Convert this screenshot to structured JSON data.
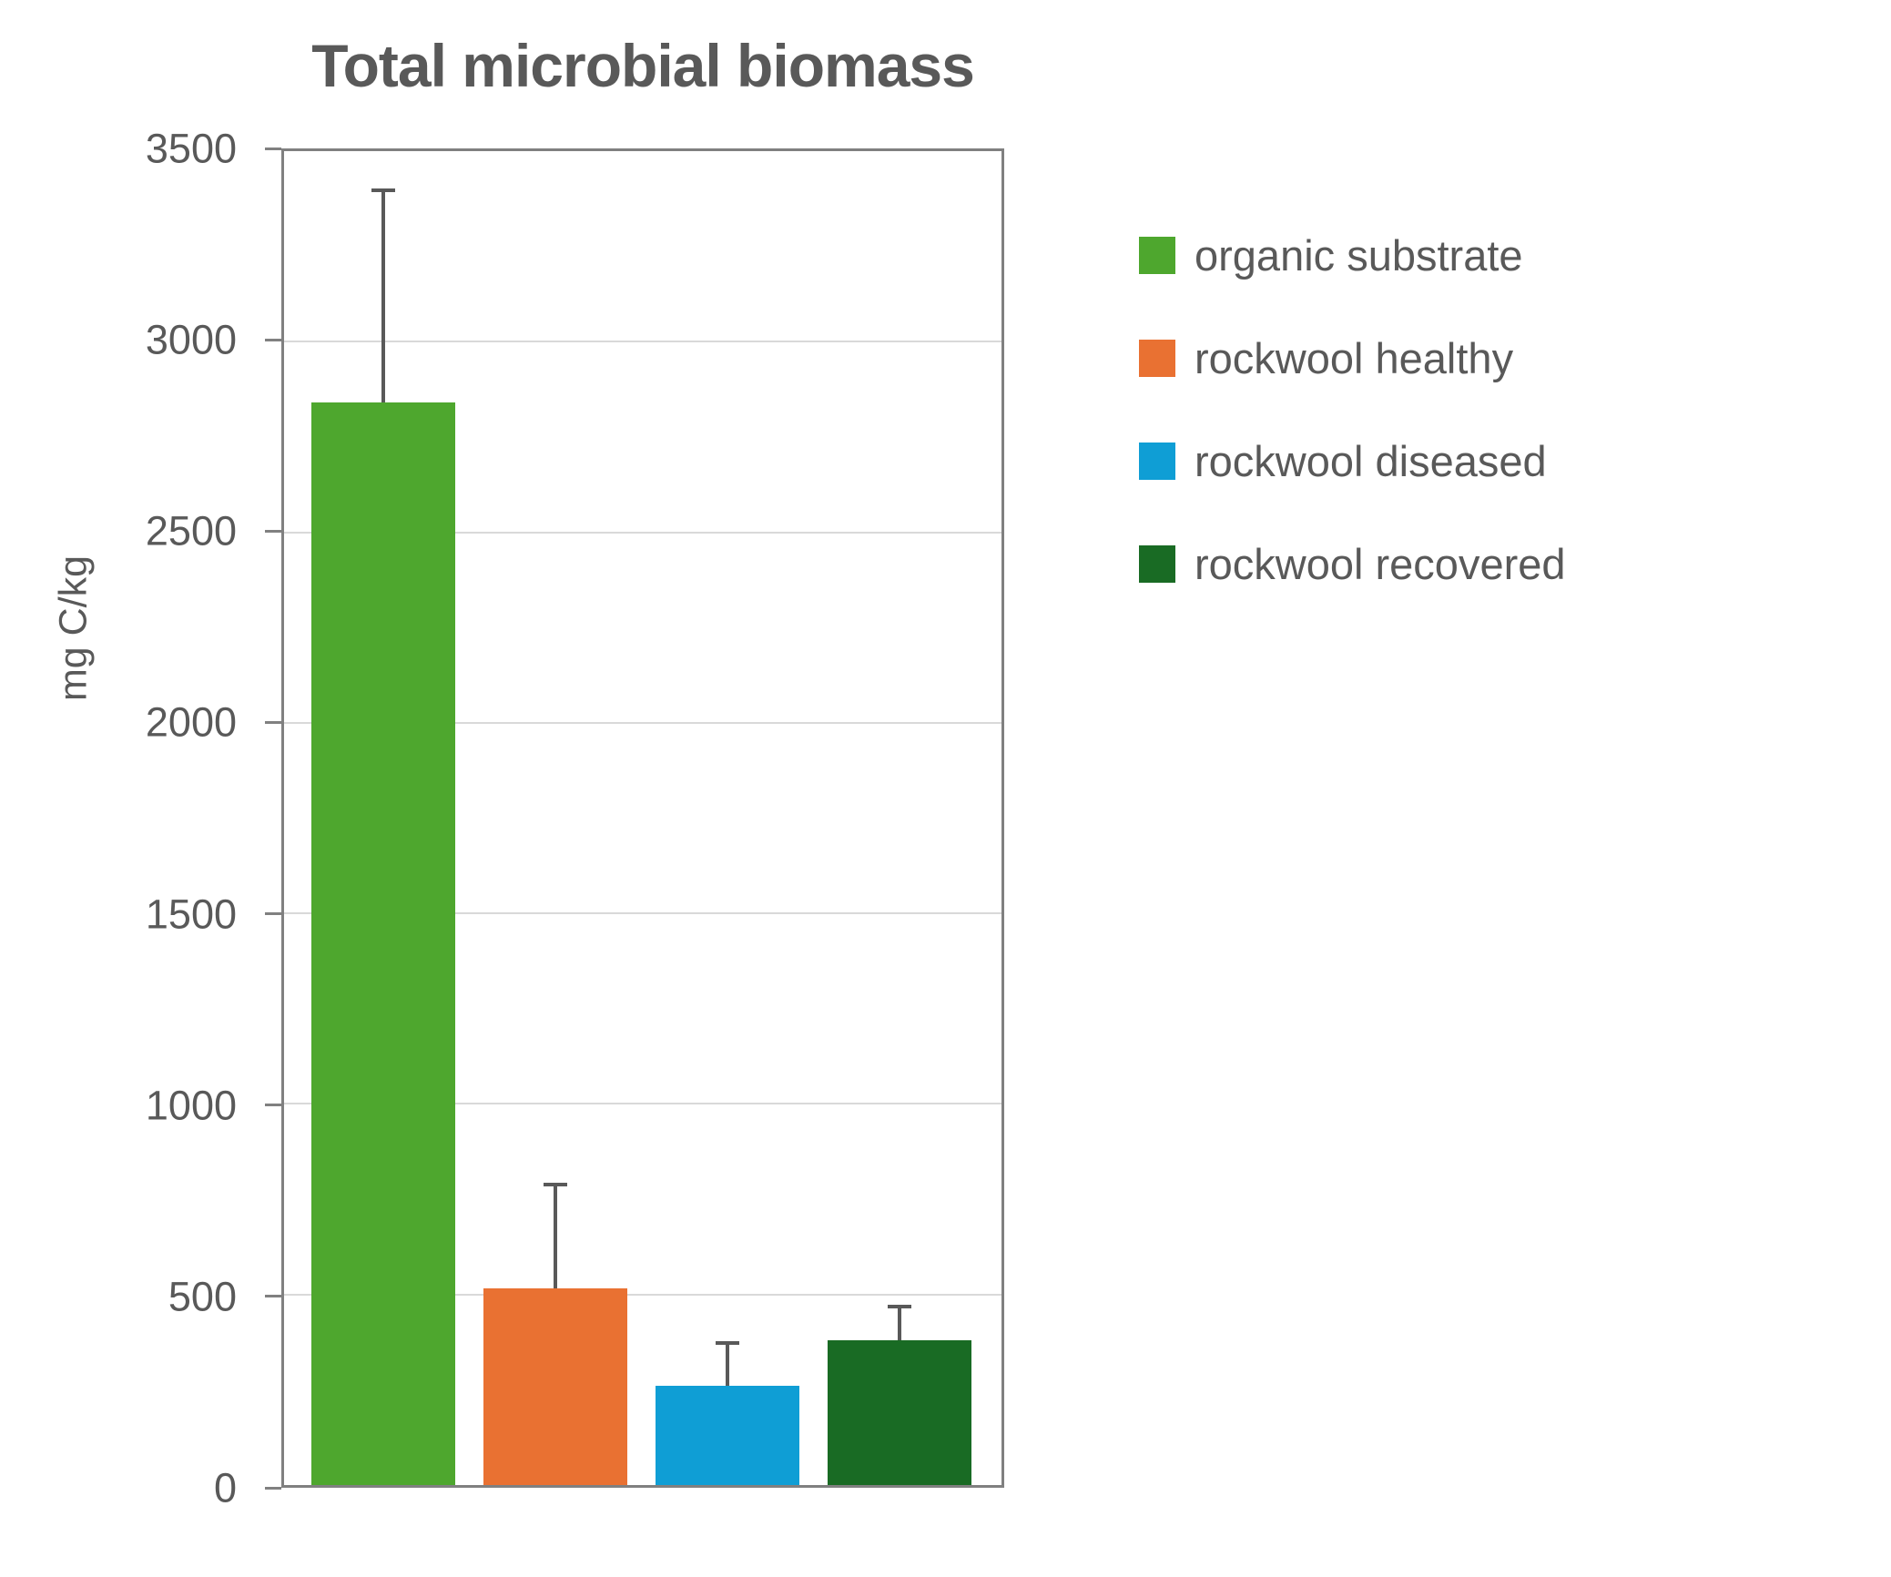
{
  "title": "Total microbial biomass",
  "y_axis": {
    "label": "mg C/kg",
    "ticks": [
      3500,
      3000,
      2500,
      2000,
      1500,
      1000,
      500,
      0
    ],
    "min": 0,
    "max": 3500
  },
  "chart_data": {
    "type": "bar",
    "title": "Total microbial biomass",
    "xlabel": "",
    "ylabel": "mg C/kg",
    "ylim": [
      0,
      3500
    ],
    "grid": true,
    "legend_position": "right",
    "categories": [
      "organic substrate",
      "rockwool healthy",
      "rockwool diseased",
      "rockwool recovered"
    ],
    "values": [
      2840,
      515,
      260,
      380
    ],
    "errors_plus": [
      555,
      270,
      110,
      87
    ],
    "colors": [
      "#4EA72E",
      "#E97132",
      "#0F9ED5",
      "#196B24"
    ]
  },
  "legend": {
    "items": [
      {
        "label": "organic substrate",
        "color": "#4EA72E"
      },
      {
        "label": "rockwool healthy",
        "color": "#E97132"
      },
      {
        "label": "rockwool diseased",
        "color": "#0F9ED5"
      },
      {
        "label": "rockwool recovered",
        "color": "#196B24"
      }
    ]
  },
  "style_colors": {
    "text": "#595959",
    "axis": "#808080",
    "gridline": "#D9D9D9",
    "error_bar": "#595959",
    "background": "#ffffff"
  }
}
